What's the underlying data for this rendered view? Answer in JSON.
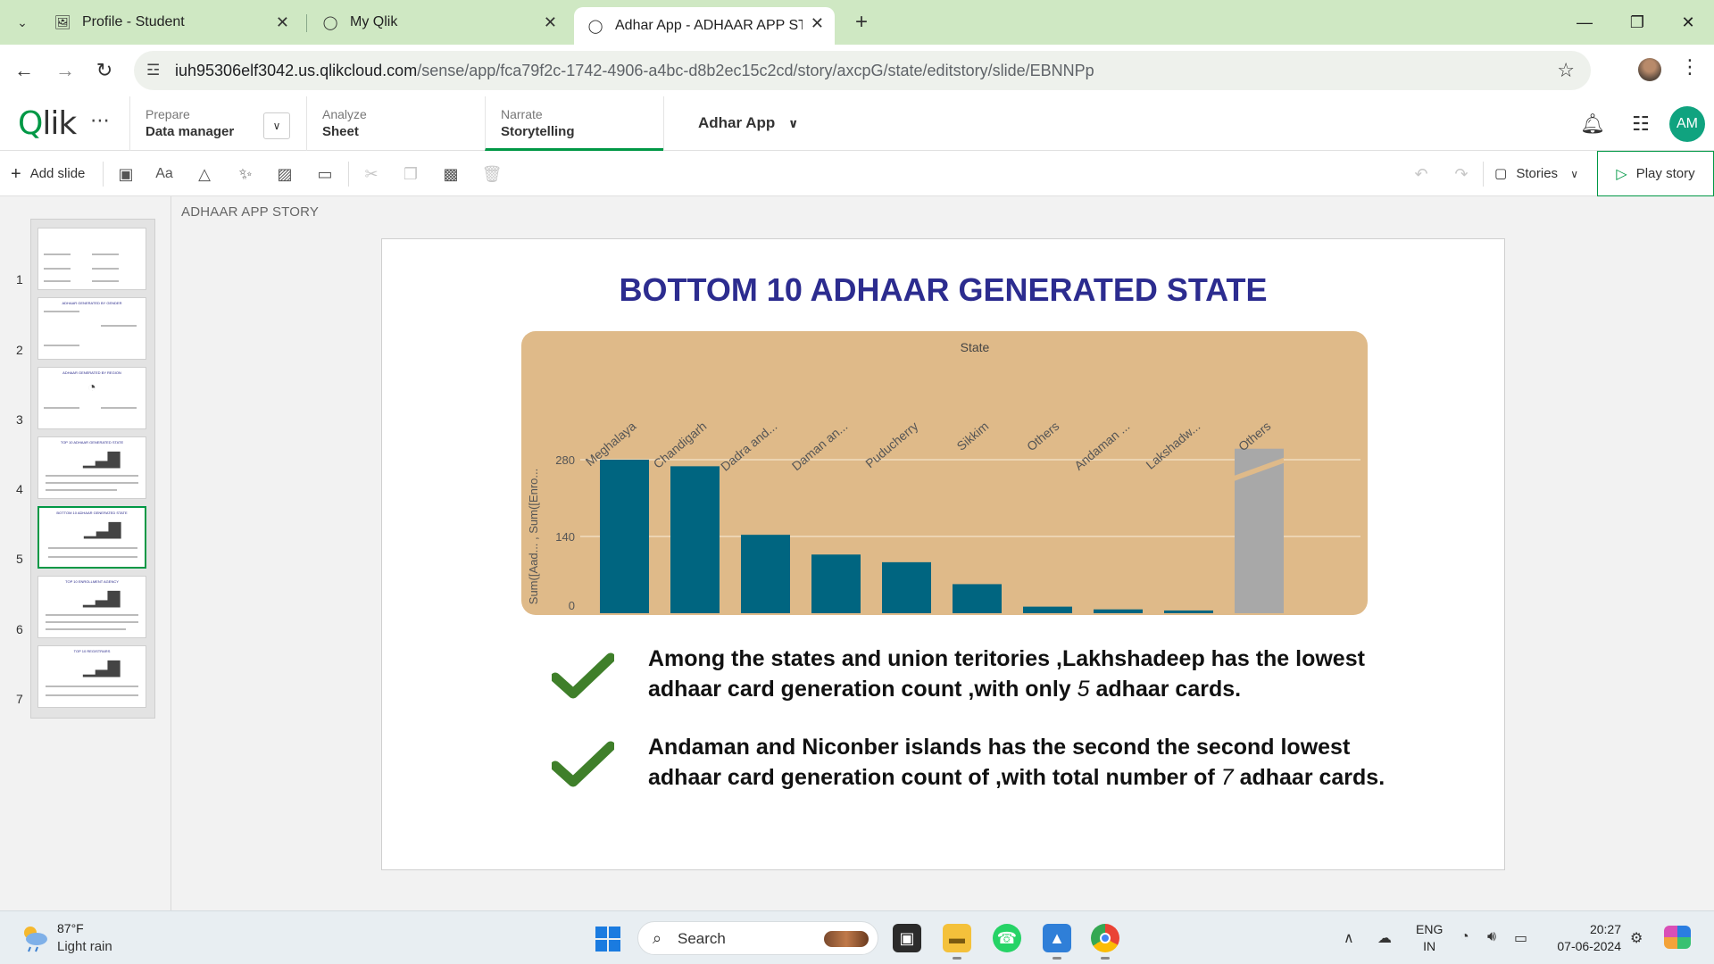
{
  "browser": {
    "tabs": [
      {
        "title": "Profile - Student",
        "icon": "profile-page-icon"
      },
      {
        "title": "My Qlik",
        "icon": "qlik-icon"
      },
      {
        "title": "Adhar App - ADHAAR APP STO",
        "icon": "qlik-icon"
      }
    ],
    "url_host": "iuh95306elf3042.us.qlikcloud.com",
    "url_path": "/sense/app/fca79f2c-1742-4906-a4bc-d8b2ec15c2cd/story/axcpG/state/editstory/slide/EBNNPp"
  },
  "qlik_header": {
    "prepare_label": "Prepare",
    "prepare_value": "Data manager",
    "analyze_label": "Analyze",
    "analyze_value": "Sheet",
    "narrate_label": "Narrate",
    "narrate_value": "Storytelling",
    "app_name": "Adhar App",
    "avatar_initials": "AM"
  },
  "toolbar": {
    "add_slide": "Add slide",
    "stories": "Stories",
    "play_story": "Play story"
  },
  "story": {
    "name": "ADHAAR APP STORY",
    "slide_numbers": [
      "1",
      "2",
      "3",
      "4",
      "5",
      "6",
      "7"
    ],
    "selected_slide": 5,
    "thumb_titles": [
      "",
      "ADHAAR GENERATED BY GENDER",
      "ADHAAR GENERATED BY REGION",
      "TOP 10 ADHAAR GENERATED STATE",
      "BOTTOM 10 ADHAAR GENERATED STATE",
      "TOP 10 ENROLLMENT AGENCY",
      "TOP 10 REGISTRARS"
    ]
  },
  "slide": {
    "title": "BOTTOM 10 ADHAAR GENERATED STATE",
    "bullets": [
      {
        "part1": "Among the states and union teritories ,Lakhshadeep has the lowest adhaar card generation count ,with only ",
        "num": "5",
        "part2": " adhaar cards."
      },
      {
        "part1": "Andaman and Niconber islands has the second the second lowest adhaar card generation count of ,with total number of ",
        "num": "7",
        "part2": " adhaar cards."
      }
    ]
  },
  "chart_data": {
    "type": "bar",
    "xlabel": "State",
    "ylabel": "Sum([Aad... , Sum([Enro...",
    "categories": [
      "Meghalaya",
      "Chandigarh",
      "Dadra and...",
      "Daman an...",
      "Puducherry",
      "Sikkim",
      "Others",
      "Andaman ...",
      "Lakshadw...",
      "Others"
    ],
    "values": [
      280,
      268,
      143,
      107,
      93,
      53,
      12,
      7,
      5,
      330
    ],
    "y_ticks": [
      "0",
      "140",
      "280"
    ],
    "ylim": [
      0,
      300
    ],
    "bar_color": "#006580",
    "others_color": "#a8a8a8",
    "background": "#dfba89",
    "last_bar_truncated": true
  },
  "taskbar": {
    "temperature": "87°F",
    "weather": "Light rain",
    "search": "Search",
    "lang_1": "ENG",
    "lang_2": "IN",
    "time": "20:27",
    "date": "07-06-2024"
  }
}
